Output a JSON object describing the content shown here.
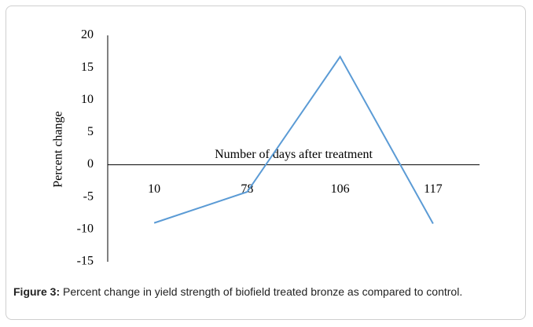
{
  "chart_data": {
    "type": "line",
    "y_label": "Percent change",
    "x_label": "Number of days after treatment",
    "categories": [
      "10",
      "78",
      "106",
      "117"
    ],
    "series": [
      {
        "name": "Percent change",
        "color": "#5b9bd5",
        "values": [
          -9,
          -4.2,
          16.7,
          -9.1
        ]
      }
    ],
    "ylim": [
      -15,
      20
    ],
    "yticks": [
      -15,
      -10,
      -5,
      0,
      5,
      10,
      15,
      20
    ],
    "grid": false
  },
  "caption": {
    "label": "Figure 3:",
    "text": "Percent change in yield strength of biofield treated bronze as compared to control."
  }
}
